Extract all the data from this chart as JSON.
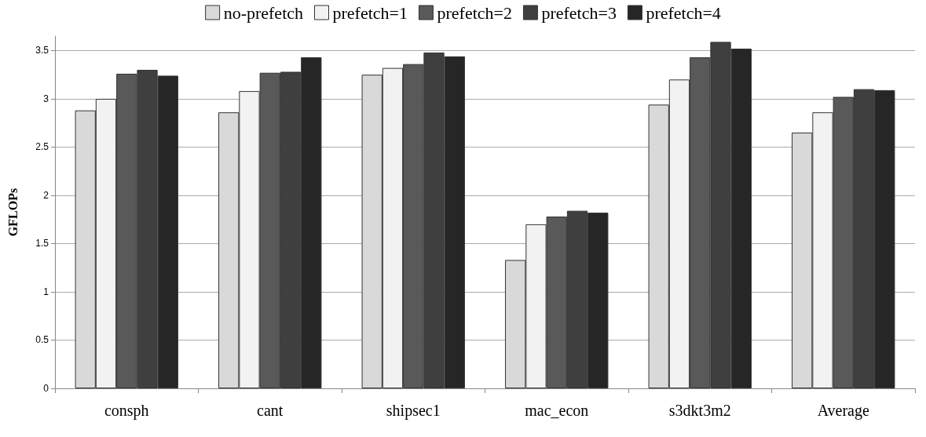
{
  "chart_data": {
    "type": "bar",
    "ylabel": "GFLOPs",
    "categories": [
      "consph",
      "cant",
      "shipsec1",
      "mac_econ",
      "s3dkt3m2",
      "Average"
    ],
    "series": [
      {
        "name": "no-prefetch",
        "color": "#d9d9d9",
        "values": [
          2.88,
          2.86,
          3.25,
          1.33,
          2.94,
          2.65
        ]
      },
      {
        "name": "prefetch=1",
        "color": "#f2f2f2",
        "values": [
          3.0,
          3.08,
          3.32,
          1.7,
          3.2,
          2.86
        ]
      },
      {
        "name": "prefetch=2",
        "color": "#595959",
        "values": [
          3.26,
          3.27,
          3.36,
          1.78,
          3.43,
          3.02
        ]
      },
      {
        "name": "prefetch=3",
        "color": "#3f3f3f",
        "values": [
          3.3,
          3.28,
          3.48,
          1.84,
          3.59,
          3.1
        ]
      },
      {
        "name": "prefetch=4",
        "color": "#262626",
        "values": [
          3.24,
          3.43,
          3.44,
          1.82,
          3.52,
          3.09
        ]
      }
    ],
    "ylim": [
      0,
      3.65
    ],
    "yticks": [
      0,
      0.5,
      1,
      1.5,
      2,
      2.5,
      3,
      3.5
    ],
    "grid": "y",
    "legend": "top"
  }
}
